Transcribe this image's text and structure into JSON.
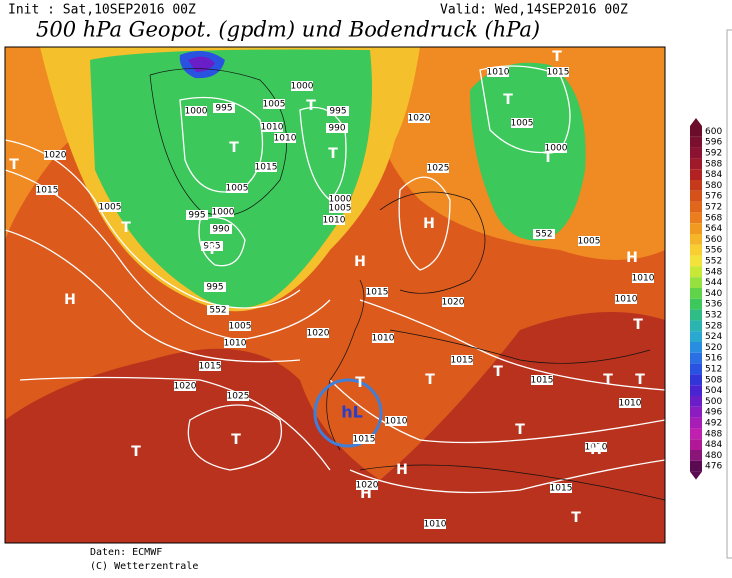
{
  "header": {
    "init": "Init : Sat,10SEP2016 00Z",
    "valid": "Valid: Wed,14SEP2016 00Z",
    "title": "500 hPa Geopot. (gpdm) und Bodendruck (hPa)"
  },
  "map": {
    "isobar_labels": [
      "1000",
      "995",
      "1005",
      "1000",
      "995",
      "1010",
      "990",
      "1010",
      "1020",
      "1015",
      "1015",
      "1005",
      "1000",
      "1005",
      "1010",
      "1000",
      "995",
      "990",
      "995",
      "995",
      "1005",
      "1005",
      "1010",
      "1015",
      "1020",
      "1025",
      "1020",
      "1015",
      "1010",
      "1020",
      "1015",
      "1015",
      "1010",
      "1010",
      "1015",
      "1010",
      "1020",
      "1015",
      "1010",
      "1025",
      "1020",
      "1010",
      "1015",
      "1005",
      "1000",
      "1005",
      "1010",
      "1010",
      "552",
      "552"
    ],
    "centers": [
      "T",
      "T",
      "T",
      "T",
      "T",
      "T",
      "T",
      "T",
      "T",
      "H",
      "H",
      "H",
      "H",
      "T",
      "T",
      "T",
      "H",
      "T",
      "T",
      "T",
      "T",
      "H",
      "H",
      "T",
      "T",
      "T"
    ],
    "annotation": "hL"
  },
  "legend": {
    "levels": [
      600,
      596,
      592,
      588,
      584,
      580,
      576,
      572,
      568,
      564,
      560,
      556,
      552,
      548,
      544,
      540,
      536,
      532,
      528,
      524,
      520,
      516,
      512,
      508,
      504,
      500,
      496,
      492,
      488,
      484,
      480,
      476
    ],
    "colors": [
      "#6a0c2a",
      "#7a0f2e",
      "#8b1230",
      "#9e1a2a",
      "#b22222",
      "#c43a1a",
      "#d4521a",
      "#e0661c",
      "#ea7d1e",
      "#f09a22",
      "#f5b52a",
      "#f8cf33",
      "#f2e23a",
      "#c8e838",
      "#96e040",
      "#5fd44a",
      "#3cc85a",
      "#2fbc86",
      "#2bb4b0",
      "#2aa8d0",
      "#2a8ee0",
      "#2a70e4",
      "#2a52e0",
      "#3236d8",
      "#4a24d0",
      "#6a1ec8",
      "#8a1cc0",
      "#a81cb8",
      "#c020b0",
      "#b01898",
      "#8a1478",
      "#5a0a50"
    ]
  },
  "footer": {
    "source": "Daten: ECMWF",
    "copyright": "(C) Wetterzentrale"
  }
}
